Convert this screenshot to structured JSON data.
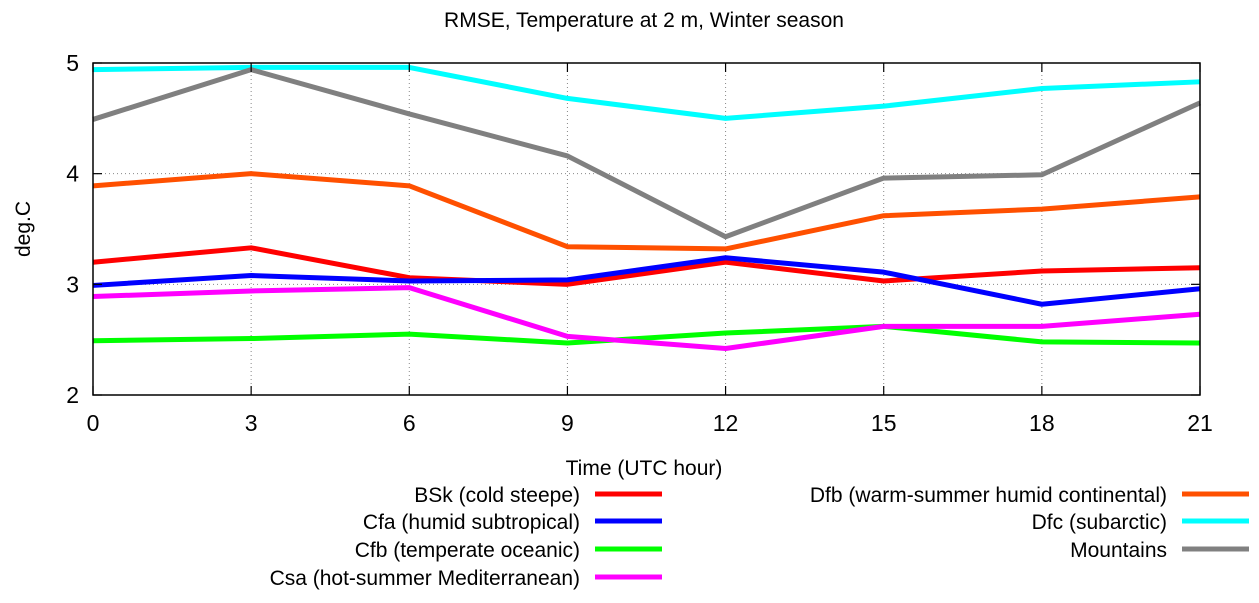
{
  "chart_data": {
    "type": "line",
    "title": "RMSE, Temperature at 2 m, Winter season",
    "xlabel": "Time (UTC hour)",
    "ylabel": "deg.C",
    "x": [
      0,
      3,
      6,
      9,
      12,
      15,
      18,
      21
    ],
    "xlim": [
      0,
      21
    ],
    "ylim": [
      2,
      5
    ],
    "xticks": [
      "0",
      "3",
      "6",
      "9",
      "12",
      "15",
      "18",
      "21"
    ],
    "yticks": [
      "2",
      "3",
      "4",
      "5"
    ],
    "grid": true,
    "series": [
      {
        "name": "BSk (cold steepe)",
        "color": "#ff0000",
        "values": [
          3.2,
          3.33,
          3.06,
          3.0,
          3.2,
          3.03,
          3.12,
          3.15
        ]
      },
      {
        "name": "Cfa (humid subtropical)",
        "color": "#0000ff",
        "values": [
          2.99,
          3.08,
          3.03,
          3.04,
          3.24,
          3.11,
          2.82,
          2.96
        ]
      },
      {
        "name": "Cfb (temperate oceanic)",
        "color": "#00ff00",
        "values": [
          2.49,
          2.51,
          2.55,
          2.47,
          2.56,
          2.62,
          2.48,
          2.47
        ]
      },
      {
        "name": "Csa (hot-summer Mediterranean)",
        "color": "#ff00ff",
        "values": [
          2.89,
          2.94,
          2.97,
          2.53,
          2.42,
          2.62,
          2.62,
          2.73
        ]
      },
      {
        "name": "Dfb (warm-summer humid continental)",
        "color": "#ff5000",
        "values": [
          3.89,
          4.0,
          3.89,
          3.34,
          3.32,
          3.62,
          3.68,
          3.79
        ]
      },
      {
        "name": "Dfc (subarctic)",
        "color": "#00ffff",
        "values": [
          4.94,
          4.96,
          4.96,
          4.68,
          4.5,
          4.61,
          4.77,
          4.83
        ]
      },
      {
        "name": "Mountains",
        "color": "#808080",
        "values": [
          4.49,
          4.94,
          4.54,
          4.16,
          3.43,
          3.96,
          3.99,
          4.64
        ]
      }
    ]
  }
}
